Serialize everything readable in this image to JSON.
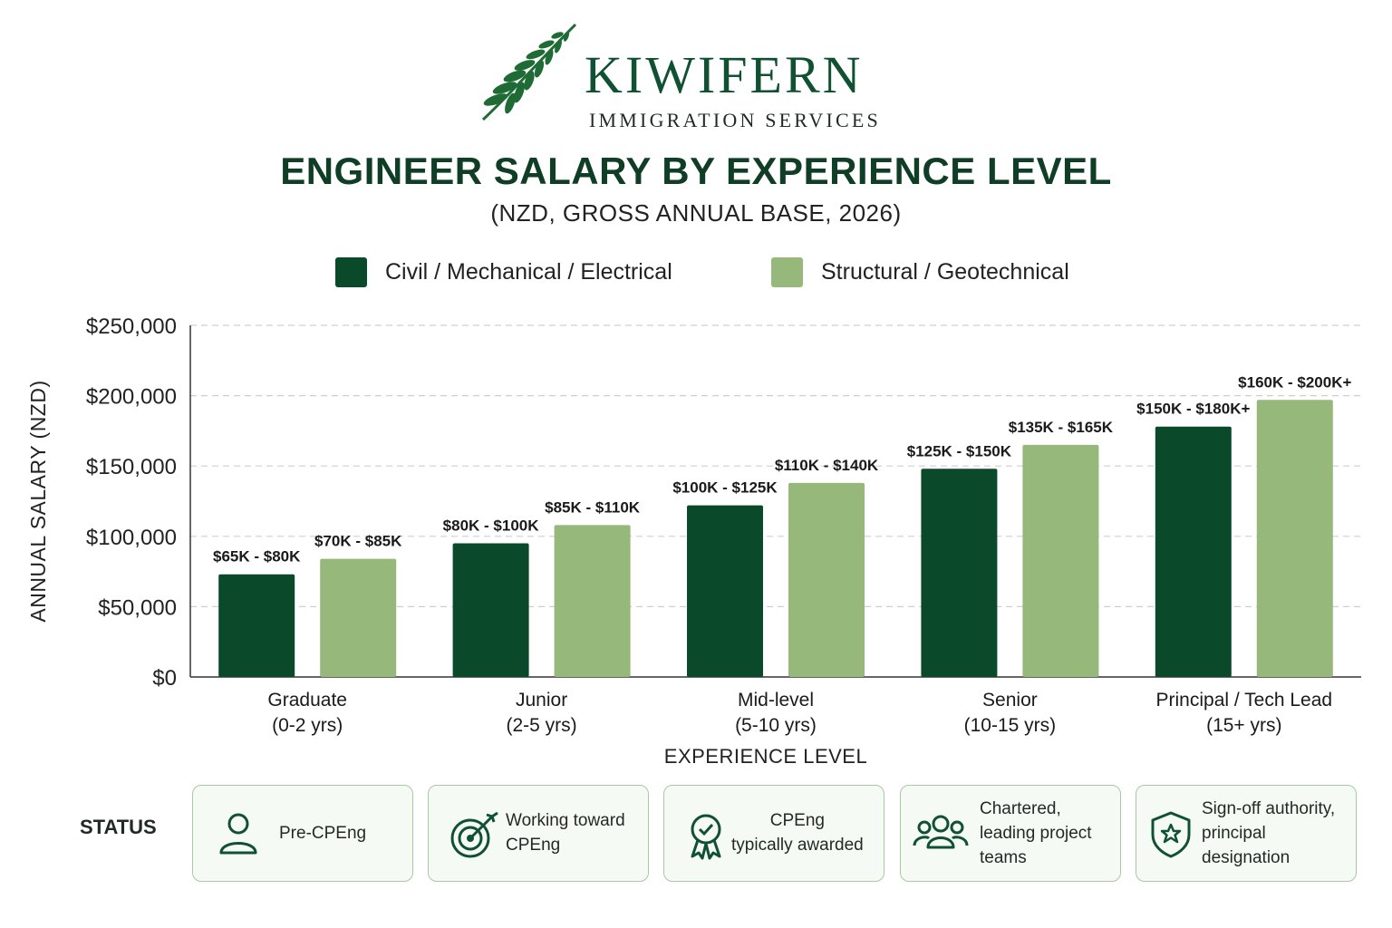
{
  "brand": {
    "name": "KIWIFERN",
    "tagline": "IMMIGRATION SERVICES"
  },
  "chart_data": {
    "type": "bar",
    "title": "ENGINEER SALARY BY EXPERIENCE LEVEL",
    "subtitle": "(NZD, GROSS ANNUAL BASE, 2026)",
    "xlabel": "EXPERIENCE LEVEL",
    "ylabel": "ANNUAL SALARY (NZD)",
    "ylim": [
      0,
      250000
    ],
    "yticks": [
      0,
      50000,
      100000,
      150000,
      200000,
      250000
    ],
    "ytick_labels": [
      "$0",
      "$50,000",
      "$100,000",
      "$150,000",
      "$200,000",
      "$250,000"
    ],
    "grid": true,
    "legend_position": "top",
    "categories": [
      {
        "line1": "Graduate",
        "line2": "(0-2 yrs)"
      },
      {
        "line1": "Junior",
        "line2": "(2-5 yrs)"
      },
      {
        "line1": "Mid-level",
        "line2": "(5-10 yrs)"
      },
      {
        "line1": "Senior",
        "line2": "(10-15 yrs)"
      },
      {
        "line1": "Principal / Tech Lead",
        "line2": "(15+ yrs)"
      }
    ],
    "series": [
      {
        "name": "Civil / Mechanical / Electrical",
        "color": "#0a4a2a",
        "values": [
          73000,
          95000,
          122000,
          148000,
          178000
        ],
        "labels": [
          "$65K - $80K",
          "$80K - $100K",
          "$100K - $125K",
          "$125K - $150K",
          "$150K - $180K+"
        ]
      },
      {
        "name": "Structural / Geotechnical",
        "color": "#96b87a",
        "values": [
          84000,
          108000,
          138000,
          165000,
          197000
        ],
        "labels": [
          "$70K - $85K",
          "$85K - $110K",
          "$110K - $140K",
          "$135K - $165K",
          "$160K - $200K+"
        ]
      }
    ]
  },
  "status": {
    "label": "STATUS",
    "items": [
      {
        "icon": "person-icon",
        "text": "Pre-CPEng"
      },
      {
        "icon": "target-icon",
        "text": "Working toward\nCPEng"
      },
      {
        "icon": "award-badge-icon",
        "text": "CPEng\ntypically awarded"
      },
      {
        "icon": "team-icon",
        "text": "Chartered,\nleading project\nteams"
      },
      {
        "icon": "shield-star-icon",
        "text": "Sign-off authority,\nprincipal\ndesignation"
      }
    ]
  }
}
